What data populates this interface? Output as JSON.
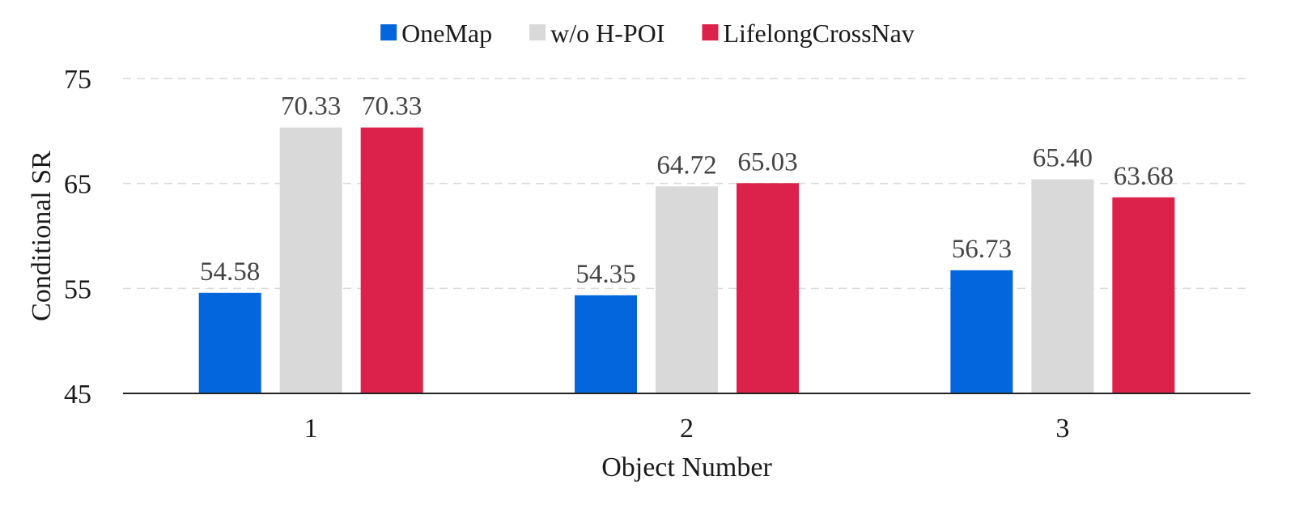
{
  "chart_data": {
    "type": "bar",
    "categories": [
      "1",
      "2",
      "3"
    ],
    "series": [
      {
        "name": "OneMap",
        "color": "#0366dd",
        "values": [
          54.58,
          54.35,
          56.73
        ],
        "labels": [
          "54.58",
          "54.35",
          "56.73"
        ]
      },
      {
        "name": "w/o H-POI",
        "color": "#d9d9d9",
        "values": [
          70.33,
          64.72,
          65.4
        ],
        "labels": [
          "70.33",
          "64.72",
          "65.40"
        ]
      },
      {
        "name": "LifelongCrossNav",
        "color": "#dc214b",
        "values": [
          70.33,
          65.03,
          63.68
        ],
        "labels": [
          "70.33",
          "65.03",
          "63.68"
        ]
      }
    ],
    "xlabel": "Object Number",
    "ylabel": "Conditional SR",
    "ylim": [
      45,
      75
    ],
    "yticks": [
      "45",
      "55",
      "65",
      "75"
    ],
    "grid": true,
    "legend": "top-center"
  }
}
